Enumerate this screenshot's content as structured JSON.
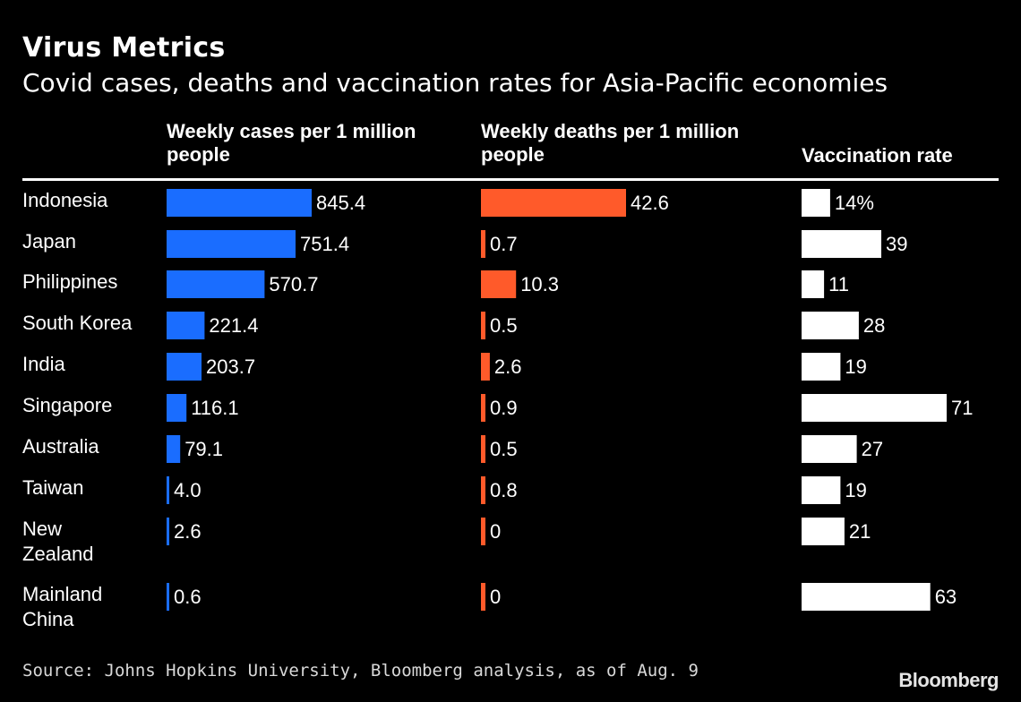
{
  "chart_data": {
    "type": "bar",
    "title": "Virus Metrics",
    "subtitle": "Covid cases, deaths and vaccination rates for Asia-Pacific economies",
    "categories": [
      "Indonesia",
      "Japan",
      "Philippines",
      "South Korea",
      "India",
      "Singapore",
      "Australia",
      "Taiwan",
      "New Zealand",
      "Mainland China"
    ],
    "series": [
      {
        "name": "Weekly cases per 1 million people",
        "color": "#1a6dff",
        "values": [
          845.4,
          751.4,
          570.7,
          221.4,
          203.7,
          116.1,
          79.1,
          4.0,
          2.6,
          0.6
        ],
        "labels": [
          "845.4",
          "751.4",
          "570.7",
          "221.4",
          "203.7",
          "116.1",
          "79.1",
          "4.0",
          "2.6",
          "0.6"
        ]
      },
      {
        "name": "Weekly deaths per 1 million people",
        "color": "#ff5a2a",
        "values": [
          42.6,
          0.7,
          10.3,
          0.5,
          2.6,
          0.9,
          0.5,
          0.8,
          0,
          0
        ],
        "labels": [
          "42.6",
          "0.7",
          "10.3",
          "0.5",
          "2.6",
          "0.9",
          "0.5",
          "0.8",
          "0",
          "0"
        ]
      },
      {
        "name": "Vaccination rate",
        "color": "#ffffff",
        "values": [
          14,
          39,
          11,
          28,
          19,
          71,
          27,
          19,
          21,
          63
        ],
        "labels": [
          "14%",
          "39",
          "11",
          "28",
          "19",
          "71",
          "27",
          "19",
          "21",
          "63"
        ]
      }
    ],
    "source": "Source: Johns Hopkins University, Bloomberg analysis, as of Aug. 9",
    "brand": "Bloomberg"
  }
}
